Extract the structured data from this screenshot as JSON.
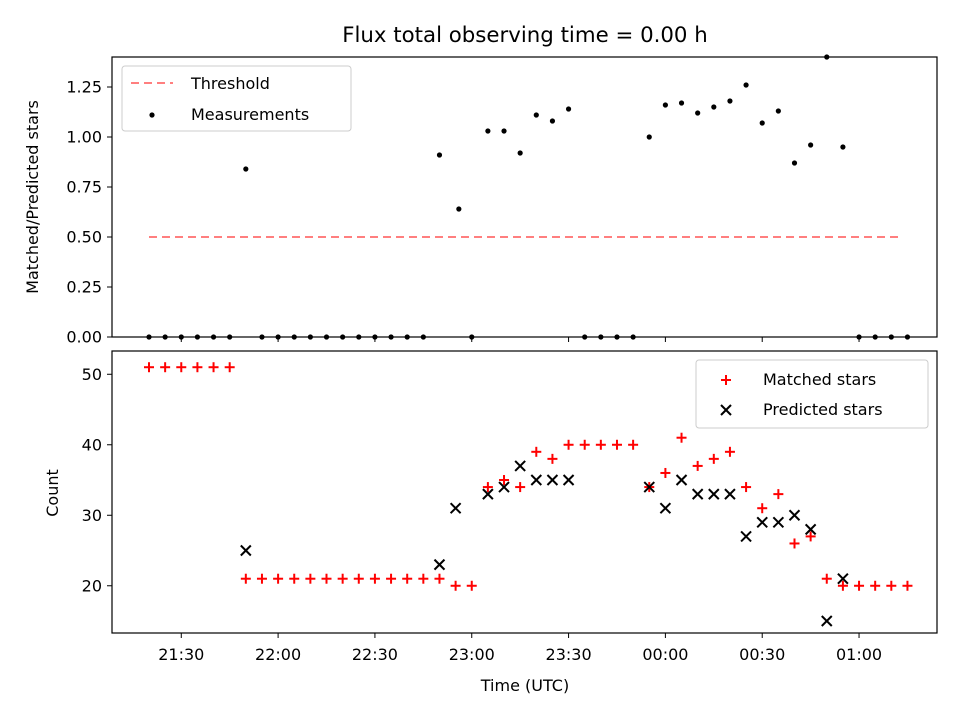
{
  "chart_data": [
    {
      "type": "scatter",
      "title": "Flux total observing time = 0.00 h",
      "ylabel": "Matched/Predicted stars",
      "xlabel": "",
      "ylim": [
        0,
        1.4
      ],
      "yticks": [
        "0.00",
        "0.25",
        "0.50",
        "0.75",
        "1.00",
        "1.25"
      ],
      "legend_position": "top-left",
      "legend": [
        "Threshold",
        "Measurements"
      ],
      "threshold": {
        "name": "Threshold",
        "value": 0.5,
        "x_start": "21:20",
        "x_end": "01:13",
        "color": "#ff7f7f"
      },
      "series": [
        {
          "name": "Measurements",
          "color": "#000000",
          "points": [
            [
              "21:20",
              0
            ],
            [
              "21:25",
              0
            ],
            [
              "21:30",
              0
            ],
            [
              "21:35",
              0
            ],
            [
              "21:40",
              0
            ],
            [
              "21:45",
              0
            ],
            [
              "21:50",
              0.84
            ],
            [
              "21:55",
              0
            ],
            [
              "22:00",
              0
            ],
            [
              "22:05",
              0
            ],
            [
              "22:10",
              0
            ],
            [
              "22:15",
              0
            ],
            [
              "22:20",
              0
            ],
            [
              "22:25",
              0
            ],
            [
              "22:30",
              0
            ],
            [
              "22:35",
              0
            ],
            [
              "22:40",
              0
            ],
            [
              "22:45",
              0
            ],
            [
              "22:50",
              0.91
            ],
            [
              "22:56",
              0.64
            ],
            [
              "23:00",
              0
            ],
            [
              "23:05",
              1.03
            ],
            [
              "23:10",
              1.03
            ],
            [
              "23:15",
              0.92
            ],
            [
              "23:20",
              1.11
            ],
            [
              "23:25",
              1.08
            ],
            [
              "23:30",
              1.14
            ],
            [
              "23:35",
              0
            ],
            [
              "23:40",
              0
            ],
            [
              "23:45",
              0
            ],
            [
              "23:50",
              0
            ],
            [
              "23:55",
              1.0
            ],
            [
              "00:00",
              1.16
            ],
            [
              "00:05",
              1.17
            ],
            [
              "00:10",
              1.12
            ],
            [
              "00:15",
              1.15
            ],
            [
              "00:20",
              1.18
            ],
            [
              "00:25",
              1.26
            ],
            [
              "00:30",
              1.07
            ],
            [
              "00:35",
              1.13
            ],
            [
              "00:40",
              0.87
            ],
            [
              "00:45",
              0.96
            ],
            [
              "00:50",
              1.4
            ],
            [
              "00:55",
              0.95
            ],
            [
              "01:00",
              0
            ],
            [
              "01:05",
              0
            ],
            [
              "01:10",
              0
            ],
            [
              "01:15",
              0
            ]
          ]
        }
      ]
    },
    {
      "type": "scatter",
      "title": "",
      "ylabel": "Count",
      "xlabel": "Time (UTC)",
      "ylim": [
        13.3,
        53.3
      ],
      "yticks": [
        "20",
        "30",
        "40",
        "50"
      ],
      "xticks": [
        "21:30",
        "22:00",
        "22:30",
        "23:00",
        "23:30",
        "00:00",
        "00:30",
        "01:00"
      ],
      "legend_position": "top-right",
      "legend": [
        "Matched stars",
        "Predicted stars"
      ],
      "series": [
        {
          "name": "Matched stars",
          "marker": "plus",
          "color": "#ff0000",
          "points": [
            [
              "21:20",
              51
            ],
            [
              "21:25",
              51
            ],
            [
              "21:30",
              51
            ],
            [
              "21:35",
              51
            ],
            [
              "21:40",
              51
            ],
            [
              "21:45",
              51
            ],
            [
              "21:50",
              21
            ],
            [
              "21:55",
              21
            ],
            [
              "22:00",
              21
            ],
            [
              "22:05",
              21
            ],
            [
              "22:10",
              21
            ],
            [
              "22:15",
              21
            ],
            [
              "22:20",
              21
            ],
            [
              "22:25",
              21
            ],
            [
              "22:30",
              21
            ],
            [
              "22:35",
              21
            ],
            [
              "22:40",
              21
            ],
            [
              "22:45",
              21
            ],
            [
              "22:50",
              21
            ],
            [
              "22:55",
              20
            ],
            [
              "23:00",
              20
            ],
            [
              "23:05",
              34
            ],
            [
              "23:10",
              35
            ],
            [
              "23:15",
              34
            ],
            [
              "23:20",
              39
            ],
            [
              "23:25",
              38
            ],
            [
              "23:30",
              40
            ],
            [
              "23:35",
              40
            ],
            [
              "23:40",
              40
            ],
            [
              "23:45",
              40
            ],
            [
              "23:50",
              40
            ],
            [
              "23:55",
              34
            ],
            [
              "00:00",
              36
            ],
            [
              "00:05",
              41
            ],
            [
              "00:10",
              37
            ],
            [
              "00:15",
              38
            ],
            [
              "00:20",
              39
            ],
            [
              "00:25",
              34
            ],
            [
              "00:30",
              31
            ],
            [
              "00:35",
              33
            ],
            [
              "00:40",
              26
            ],
            [
              "00:45",
              27
            ],
            [
              "00:50",
              21
            ],
            [
              "00:55",
              20
            ],
            [
              "01:00",
              20
            ],
            [
              "01:05",
              20
            ],
            [
              "01:10",
              20
            ],
            [
              "01:15",
              20
            ]
          ]
        },
        {
          "name": "Predicted stars",
          "marker": "x",
          "color": "#000000",
          "points": [
            [
              "21:50",
              25
            ],
            [
              "22:50",
              23
            ],
            [
              "22:55",
              31
            ],
            [
              "23:05",
              33
            ],
            [
              "23:10",
              34
            ],
            [
              "23:15",
              37
            ],
            [
              "23:20",
              35
            ],
            [
              "23:25",
              35
            ],
            [
              "23:30",
              35
            ],
            [
              "23:55",
              34
            ],
            [
              "00:00",
              31
            ],
            [
              "00:05",
              35
            ],
            [
              "00:10",
              33
            ],
            [
              "00:15",
              33
            ],
            [
              "00:20",
              33
            ],
            [
              "00:25",
              27
            ],
            [
              "00:30",
              29
            ],
            [
              "00:35",
              29
            ],
            [
              "00:40",
              30
            ],
            [
              "00:45",
              28
            ],
            [
              "00:50",
              15
            ],
            [
              "00:55",
              21
            ]
          ]
        }
      ]
    }
  ]
}
